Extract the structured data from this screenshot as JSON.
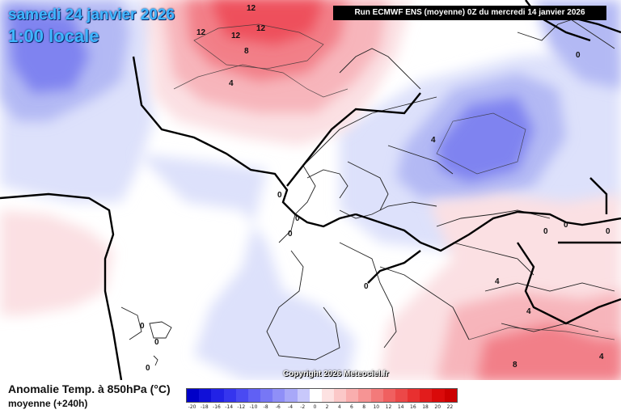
{
  "header": {
    "date_line1": "samedi 24 janvier 2026",
    "date_line2": "1:00 locale",
    "run_info": "Run ECMWF ENS (moyenne) 0Z du mercredi 14 janvier 2026"
  },
  "map": {
    "copyright": "Copyright 2026 Meteociel.fr",
    "contour_labels": [
      {
        "text": "12"
      },
      {
        "text": "12"
      },
      {
        "text": "12"
      },
      {
        "text": "12"
      },
      {
        "text": "8"
      },
      {
        "text": "4"
      },
      {
        "text": "4"
      },
      {
        "text": "0"
      },
      {
        "text": "0"
      },
      {
        "text": "0"
      },
      {
        "text": "0"
      },
      {
        "text": "0"
      },
      {
        "text": "0"
      },
      {
        "text": "0"
      },
      {
        "text": "0"
      },
      {
        "text": "0"
      },
      {
        "text": "0"
      },
      {
        "text": "0"
      },
      {
        "text": "4"
      },
      {
        "text": "8"
      },
      {
        "text": "4"
      },
      {
        "text": "4"
      }
    ],
    "colors": {
      "cold_strong": "#7f83f0",
      "cold": "#b3b9f4",
      "cold_light": "#dde1fb",
      "neutral": "#ffffff",
      "warm_light": "#fbe0e3",
      "warm": "#f7b5bb",
      "warm_strong": "#f27f88",
      "warm_max": "#ee4f5b"
    }
  },
  "legend": {
    "title": "Anomalie Temp. à 850hPa (°C)",
    "subtitle": "moyenne  (+240h)",
    "scale": [
      {
        "value": "-20",
        "color": "#0000c8"
      },
      {
        "value": "-18",
        "color": "#1010d8"
      },
      {
        "value": "-16",
        "color": "#2222e6"
      },
      {
        "value": "-14",
        "color": "#3535ee"
      },
      {
        "value": "-12",
        "color": "#4a4af2"
      },
      {
        "value": "-10",
        "color": "#6060f4"
      },
      {
        "value": "-8",
        "color": "#7777f5"
      },
      {
        "value": "-6",
        "color": "#8f8ff7"
      },
      {
        "value": "-4",
        "color": "#a8a8f8"
      },
      {
        "value": "-2",
        "color": "#c8c8fb"
      },
      {
        "value": "0",
        "color": "#ffffff"
      },
      {
        "value": "2",
        "color": "#fde2e2"
      },
      {
        "value": "4",
        "color": "#fbc8c8"
      },
      {
        "value": "6",
        "color": "#f9aeae"
      },
      {
        "value": "8",
        "color": "#f69494"
      },
      {
        "value": "10",
        "color": "#f37a7a"
      },
      {
        "value": "12",
        "color": "#f06060"
      },
      {
        "value": "14",
        "color": "#ec4848"
      },
      {
        "value": "16",
        "color": "#e83030"
      },
      {
        "value": "18",
        "color": "#e21c1c"
      },
      {
        "value": "20",
        "color": "#da0a0a"
      },
      {
        "value": "22",
        "color": "#cc0000"
      }
    ]
  }
}
